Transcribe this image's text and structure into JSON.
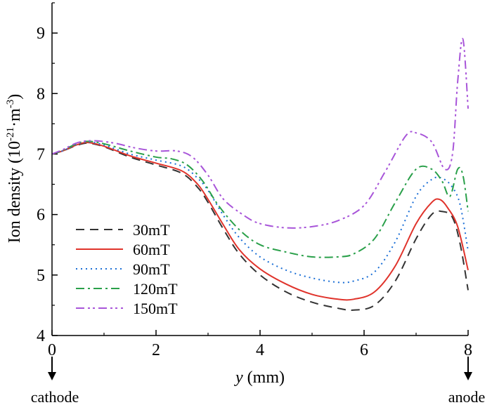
{
  "chart_data": {
    "type": "line",
    "xlabel_italic": "y",
    "xlabel_rest": " (mm)",
    "ylabel_main": "Ion density (10",
    "ylabel_exp1": "-21",
    "ylabel_mid": "·m",
    "ylabel_exp2": "-3",
    "ylabel_end": ")",
    "xlim": [
      0,
      8
    ],
    "ylim": [
      4,
      9.5
    ],
    "xticks": [
      "0",
      "2",
      "4",
      "6",
      "8"
    ],
    "yticks": [
      "4",
      "5",
      "6",
      "7",
      "8",
      "9"
    ],
    "annotations": {
      "left": "cathode",
      "right": "anode"
    },
    "legend_position": "lower-left",
    "series": [
      {
        "name": "30mT",
        "color": "#333333",
        "dash": "12,8",
        "x": [
          0,
          0.2,
          0.5,
          0.7,
          1.0,
          1.5,
          2.0,
          2.5,
          2.8,
          3.0,
          3.3,
          3.6,
          4.0,
          4.5,
          5.0,
          5.5,
          5.8,
          6.2,
          6.6,
          7.0,
          7.3,
          7.5,
          7.7,
          7.85,
          8.0
        ],
        "y": [
          7.0,
          7.05,
          7.15,
          7.18,
          7.12,
          6.95,
          6.82,
          6.68,
          6.45,
          6.2,
          5.75,
          5.35,
          5.0,
          4.72,
          4.55,
          4.45,
          4.42,
          4.5,
          4.9,
          5.6,
          6.0,
          6.05,
          5.95,
          5.5,
          4.75
        ]
      },
      {
        "name": "60mT",
        "color": "#e0332b",
        "dash": "",
        "x": [
          0,
          0.2,
          0.5,
          0.7,
          1.0,
          1.5,
          2.0,
          2.5,
          2.8,
          3.0,
          3.3,
          3.6,
          4.0,
          4.5,
          5.0,
          5.5,
          5.8,
          6.2,
          6.6,
          7.0,
          7.3,
          7.45,
          7.6,
          7.8,
          8.0
        ],
        "y": [
          7.0,
          7.05,
          7.16,
          7.19,
          7.13,
          6.97,
          6.85,
          6.72,
          6.5,
          6.25,
          5.82,
          5.42,
          5.1,
          4.85,
          4.68,
          4.6,
          4.6,
          4.72,
          5.15,
          5.85,
          6.2,
          6.25,
          6.12,
          5.8,
          5.08
        ]
      },
      {
        "name": "90mT",
        "color": "#1b6fd6",
        "dash": "2,5",
        "x": [
          0,
          0.2,
          0.5,
          0.7,
          1.0,
          1.5,
          2.0,
          2.5,
          2.8,
          3.0,
          3.3,
          3.6,
          4.0,
          4.5,
          5.0,
          5.5,
          5.8,
          6.2,
          6.6,
          7.0,
          7.3,
          7.5,
          7.7,
          7.85,
          8.0
        ],
        "y": [
          7.0,
          7.05,
          7.17,
          7.2,
          7.15,
          7.0,
          6.9,
          6.8,
          6.6,
          6.4,
          5.98,
          5.62,
          5.3,
          5.08,
          4.95,
          4.88,
          4.9,
          5.05,
          5.55,
          6.3,
          6.58,
          6.6,
          6.45,
          6.15,
          5.4
        ]
      },
      {
        "name": "120mT",
        "color": "#2aa04a",
        "dash": "12,5,3,5",
        "x": [
          0,
          0.2,
          0.5,
          0.7,
          1.0,
          1.5,
          2.0,
          2.3,
          2.6,
          2.9,
          3.2,
          3.6,
          4.0,
          4.5,
          5.0,
          5.5,
          5.8,
          6.2,
          6.6,
          7.0,
          7.3,
          7.5,
          7.65,
          7.8,
          7.9,
          8.0
        ],
        "y": [
          7.0,
          7.06,
          7.18,
          7.21,
          7.17,
          7.05,
          6.95,
          6.92,
          6.82,
          6.55,
          6.15,
          5.75,
          5.5,
          5.38,
          5.3,
          5.3,
          5.35,
          5.6,
          6.2,
          6.75,
          6.75,
          6.55,
          6.3,
          6.75,
          6.65,
          6.05
        ]
      },
      {
        "name": "150mT",
        "color": "#a855d9",
        "dash": "12,5,3,4,3,5",
        "x": [
          0,
          0.2,
          0.5,
          0.8,
          1.2,
          1.6,
          2.0,
          2.4,
          2.7,
          3.0,
          3.3,
          3.7,
          4.0,
          4.5,
          5.0,
          5.5,
          6.0,
          6.4,
          6.8,
          7.0,
          7.3,
          7.55,
          7.7,
          7.8,
          7.9,
          8.0
        ],
        "y": [
          7.0,
          7.07,
          7.19,
          7.22,
          7.18,
          7.1,
          7.05,
          7.05,
          6.95,
          6.65,
          6.25,
          5.98,
          5.85,
          5.78,
          5.8,
          5.9,
          6.15,
          6.7,
          7.3,
          7.35,
          7.2,
          6.75,
          7.0,
          8.2,
          8.9,
          7.75
        ]
      }
    ]
  }
}
